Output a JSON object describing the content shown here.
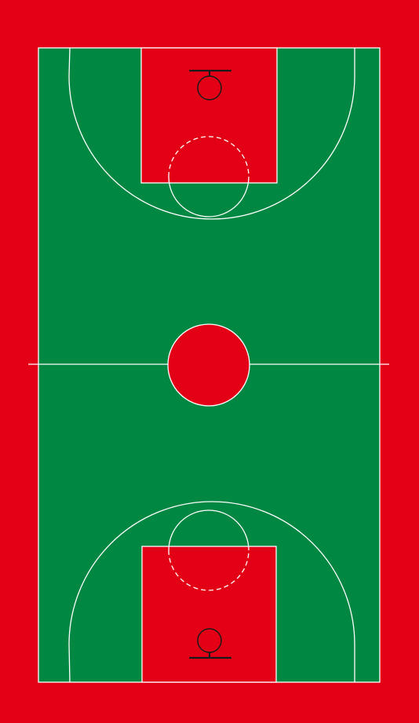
{
  "colors": {
    "outer_red": "#e30016",
    "court_green": "#008742",
    "paint_red": "#e30016",
    "line_white": "#ffffff",
    "hoop_black": "#1a1a1a"
  },
  "court": {
    "elements": [
      "court-surface",
      "halfway-line",
      "center-circle",
      "top-three-point-line",
      "top-key",
      "top-free-throw-circle",
      "top-backboard",
      "top-hoop",
      "bottom-three-point-line",
      "bottom-key",
      "bottom-free-throw-circle",
      "bottom-backboard",
      "bottom-hoop"
    ]
  }
}
